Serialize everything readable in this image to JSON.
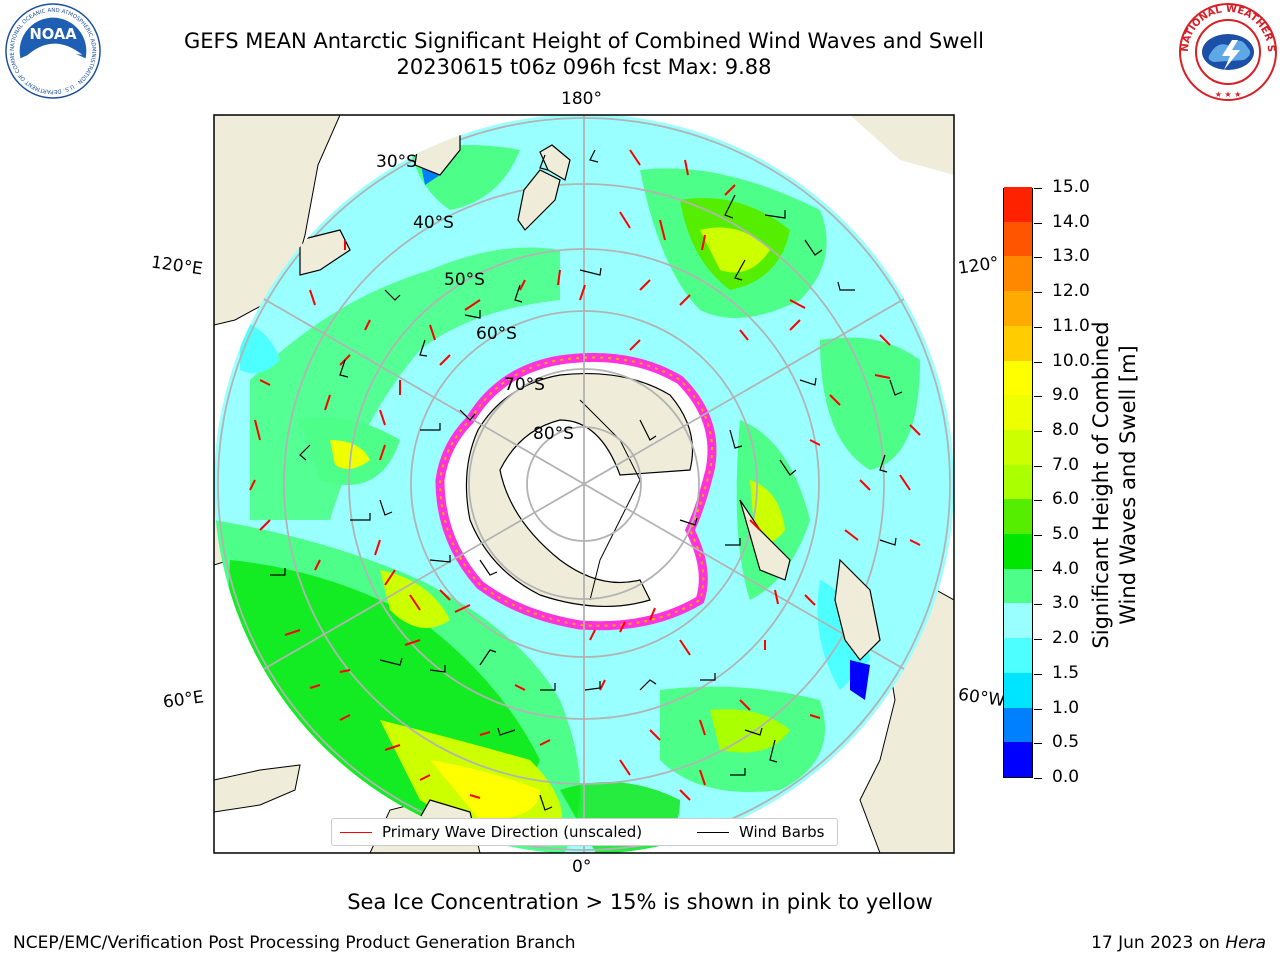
{
  "title": {
    "line1": "GEFS MEAN Antarctic Significant Height of Combined Wind Waves and Swell",
    "line2": "20230615 t06z 096h fcst   Max: 9.88"
  },
  "logos": {
    "left": "NOAA",
    "left_ring": "NATIONAL OCEANIC AND ATMOSPHERIC ADMINISTRATION · U.S. DEPARTMENT OF COMMERCE",
    "right_ring": "NATIONAL WEATHER SERVICE"
  },
  "map": {
    "projection": "south-polar-stereographic",
    "longitude_labels": {
      "top": "180°",
      "bottom": "0°",
      "left_upper": "120°E",
      "left_lower": "60°E",
      "right_upper": "120°",
      "right_lower": "60°W"
    },
    "latitude_labels": [
      "30°S",
      "40°S",
      "50°S",
      "60°S",
      "70°S",
      "80°S"
    ],
    "colors": {
      "land": "#efedd9",
      "ocean_bg": "#ffffff",
      "ice_fringe": "#ff33dd"
    }
  },
  "colorbar": {
    "title_line1": "Significant Height of Combined",
    "title_line2": "Wind Waves and Swell [m]",
    "labels": [
      "0.0",
      "0.5",
      "1.0",
      "1.5",
      "2.0",
      "3.0",
      "4.0",
      "5.0",
      "6.0",
      "7.0",
      "8.0",
      "9.0",
      "10.0",
      "11.0",
      "12.0",
      "13.0",
      "14.0",
      "15.0"
    ],
    "colors": [
      "#0000ff",
      "#0080ff",
      "#00e5ff",
      "#4dffff",
      "#99ffff",
      "#4dff88",
      "#00e600",
      "#55ee00",
      "#aaff00",
      "#ccff00",
      "#eeff00",
      "#ffff00",
      "#ffcc00",
      "#ffaa00",
      "#ff8800",
      "#ff5500",
      "#ff2200"
    ]
  },
  "legend": {
    "primary_label": "Primary Wave Direction (unscaled)",
    "primary_color": "#ff0000",
    "barbs_label": "Wind Barbs",
    "barbs_color": "#000000"
  },
  "subnote": "Sea Ice Concentration > 15% is shown in pink to yellow",
  "footer": {
    "left": "NCEP/EMC/Verification Post Processing Product Generation Branch",
    "right_date": "17 Jun 2023 on ",
    "right_machine": "Hera"
  }
}
